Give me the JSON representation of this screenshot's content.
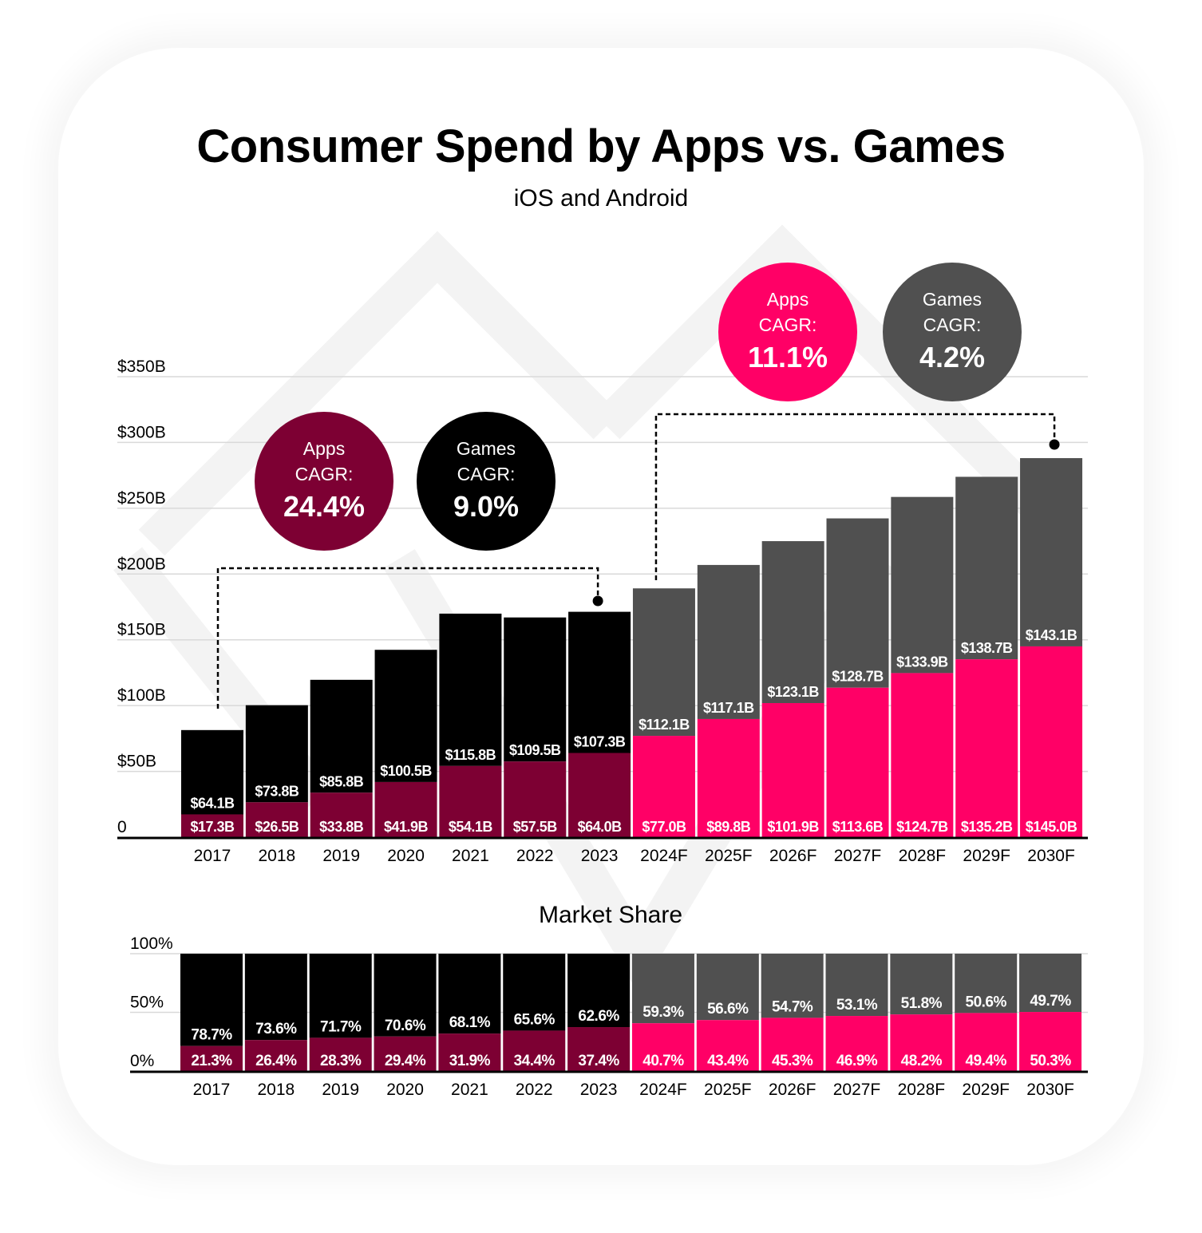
{
  "title": "Consumer Spend by Apps vs. Games",
  "subtitle": "iOS and Android",
  "colors": {
    "apps_actual": "#7d0033",
    "games_actual": "#000000",
    "apps_forecast": "#ff0066",
    "games_forecast": "#505050",
    "grid": "#d9d9d9",
    "watermark": "#f4f4f4"
  },
  "cagr": {
    "actual_apps": {
      "label_line1": "Apps",
      "label_line2": "CAGR:",
      "value": "24.4%"
    },
    "actual_games": {
      "label_line1": "Games",
      "label_line2": "CAGR:",
      "value": "9.0%"
    },
    "forecast_apps": {
      "label_line1": "Apps",
      "label_line2": "CAGR:",
      "value": "11.1%"
    },
    "forecast_games": {
      "label_line1": "Games",
      "label_line2": "CAGR:",
      "value": "4.2%"
    }
  },
  "chart_data": [
    {
      "type": "bar",
      "stacked": true,
      "title": "Consumer Spend by Apps vs. Games",
      "subtitle": "iOS and Android",
      "xlabel": "",
      "ylabel": "",
      "ylim": [
        0,
        350
      ],
      "yticks": [
        0,
        50,
        100,
        150,
        200,
        250,
        300,
        350
      ],
      "ytick_labels": [
        "0",
        "$50B",
        "$100B",
        "$150B",
        "$200B",
        "$250B",
        "$300B",
        "$350B"
      ],
      "grid": true,
      "categories": [
        "2017",
        "2018",
        "2019",
        "2020",
        "2021",
        "2022",
        "2023",
        "2024F",
        "2025F",
        "2026F",
        "2027F",
        "2028F",
        "2029F",
        "2030F"
      ],
      "forecast_from_index": 7,
      "series": [
        {
          "name": "Apps",
          "values": [
            17.3,
            26.5,
            33.8,
            41.9,
            54.1,
            57.5,
            64.0,
            77.0,
            89.8,
            101.9,
            113.6,
            124.7,
            135.2,
            145.0
          ],
          "labels": [
            "$17.3B",
            "$26.5B",
            "$33.8B",
            "$41.9B",
            "$54.1B",
            "$57.5B",
            "$64.0B",
            "$77.0B",
            "$89.8B",
            "$101.9B",
            "$113.6B",
            "$124.7B",
            "$135.2B",
            "$145.0B"
          ]
        },
        {
          "name": "Games",
          "values": [
            64.1,
            73.8,
            85.8,
            100.5,
            115.8,
            109.5,
            107.3,
            112.1,
            117.1,
            123.1,
            128.7,
            133.9,
            138.7,
            143.1
          ],
          "labels": [
            "$64.1B",
            "$73.8B",
            "$85.8B",
            "$100.5B",
            "$115.8B",
            "$109.5B",
            "$107.3B",
            "$112.1B",
            "$117.1B",
            "$123.1B",
            "$128.7B",
            "$133.9B",
            "$138.7B",
            "$143.1B"
          ]
        }
      ],
      "annotations": [
        {
          "text": "Apps CAGR: 24.4%",
          "span": [
            "2017",
            "2023"
          ]
        },
        {
          "text": "Games CAGR: 9.0%",
          "span": [
            "2017",
            "2023"
          ]
        },
        {
          "text": "Apps CAGR: 11.1%",
          "span": [
            "2024F",
            "2030F"
          ]
        },
        {
          "text": "Games CAGR: 4.2%",
          "span": [
            "2024F",
            "2030F"
          ]
        }
      ]
    },
    {
      "type": "bar",
      "stacked": true,
      "title": "Market Share",
      "ylim": [
        0,
        100
      ],
      "yticks": [
        0,
        50,
        100
      ],
      "ytick_labels": [
        "0%",
        "50%",
        "100%"
      ],
      "grid": true,
      "categories": [
        "2017",
        "2018",
        "2019",
        "2020",
        "2021",
        "2022",
        "2023",
        "2024F",
        "2025F",
        "2026F",
        "2027F",
        "2028F",
        "2029F",
        "2030F"
      ],
      "forecast_from_index": 7,
      "series": [
        {
          "name": "Apps",
          "values": [
            21.3,
            26.4,
            28.3,
            29.4,
            31.9,
            34.4,
            37.4,
            40.7,
            43.4,
            45.3,
            46.9,
            48.2,
            49.4,
            50.3
          ],
          "labels": [
            "21.3%",
            "26.4%",
            "28.3%",
            "29.4%",
            "31.9%",
            "34.4%",
            "37.4%",
            "40.7%",
            "43.4%",
            "45.3%",
            "46.9%",
            "48.2%",
            "49.4%",
            "50.3%"
          ]
        },
        {
          "name": "Games",
          "values": [
            78.7,
            73.6,
            71.7,
            70.6,
            68.1,
            65.6,
            62.6,
            59.3,
            56.6,
            54.7,
            53.1,
            51.8,
            50.6,
            49.7
          ],
          "labels": [
            "78.7%",
            "73.6%",
            "71.7%",
            "70.6%",
            "68.1%",
            "65.6%",
            "62.6%",
            "59.3%",
            "56.6%",
            "54.7%",
            "53.1%",
            "51.8%",
            "50.6%",
            "49.7%"
          ]
        }
      ]
    }
  ]
}
